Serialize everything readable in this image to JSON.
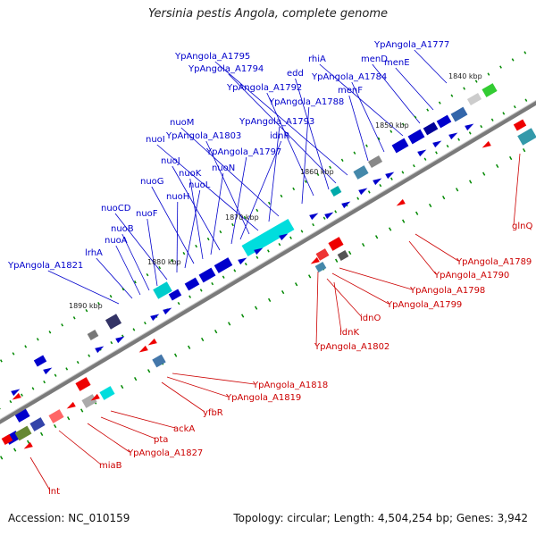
{
  "title": "Yersinia pestis Angola, complete genome",
  "footer": {
    "accession": "Accession: NC_010159",
    "summary": "Topology: circular; Length: 4,504,254 bp; Genes: 3,942"
  },
  "colors": {
    "label_forward": "#0000cc",
    "label_reverse": "#cc0000",
    "backbone": "#808080",
    "gene_forward": "#0000cc",
    "gene_reverse": "#ee0000",
    "feature_cyan": "#00e0e0",
    "feature_green": "#33cc33",
    "feature_gray": "#888888",
    "tick_green": "#008800"
  },
  "ruler_labels": [
    "1840 kbp",
    "1850 kbp",
    "1860 kbp",
    "1870 kbp",
    "1880 kbp",
    "1890 kbp"
  ],
  "forward_labels": [
    "YpAngola_A1777",
    "menE",
    "menD",
    "rhiA",
    "YpAngola_A1784",
    "menF",
    "YpAngola_A1795",
    "YpAngola_A1794",
    "edd",
    "YpAngola_A1792",
    "YpAngola_A1788",
    "nuoM",
    "YpAngola_A1793",
    "nuoI",
    "YpAngola_A1803",
    "idnR",
    "YpAngola_A1797",
    "nuoJ",
    "nuoN",
    "nuoK",
    "nuoG",
    "nuoL",
    "nuoH",
    "nuoCD",
    "nuoF",
    "nuoB",
    "nuoA",
    "lrhA",
    "YpAngola_A1821"
  ],
  "reverse_labels": [
    "glnQ",
    "YpAngola_A1789",
    "YpAngola_A1790",
    "YpAngola_A1798",
    "YpAngola_A1799",
    "idnO",
    "idnK",
    "YpAngola_A1802",
    "YpAngola_A1818",
    "YpAngola_A1819",
    "yfbR",
    "ackA",
    "pta",
    "YpAngola_A1827",
    "miaB",
    "lnt"
  ]
}
